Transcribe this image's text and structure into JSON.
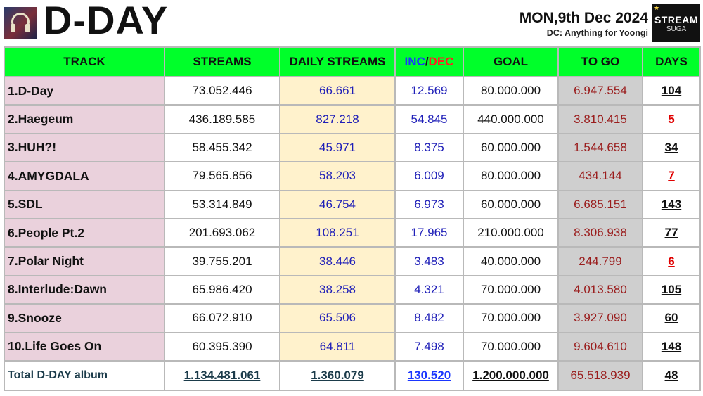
{
  "header": {
    "title": "D-DAY",
    "date": "MON,9th Dec 2024",
    "caption": "DC: Anything for Yoongi",
    "logo_line1": "STREAM",
    "logo_line2": "SUGA"
  },
  "table": {
    "columns": {
      "track": "TRACK",
      "streams": "STREAMS",
      "daily": "DAILY STREAMS",
      "inc": "INC",
      "slash": "/",
      "dec": "DEC",
      "goal": "GOAL",
      "togo": "TO GO",
      "days": "DAYS"
    },
    "rows": [
      {
        "track": "1.D-Day",
        "streams": "73.052.446",
        "daily": "66.661",
        "inc": "12.569",
        "goal": "80.000.000",
        "togo": "6.947.554",
        "days": "104"
      },
      {
        "track": "2.Haegeum",
        "streams": "436.189.585",
        "daily": "827.218",
        "inc": "54.845",
        "goal": "440.000.000",
        "togo": "3.810.415",
        "days": "5"
      },
      {
        "track": "3.HUH?!",
        "streams": "58.455.342",
        "daily": "45.971",
        "inc": "8.375",
        "goal": "60.000.000",
        "togo": "1.544.658",
        "days": "34"
      },
      {
        "track": "4.AMYGDALA",
        "streams": "79.565.856",
        "daily": "58.203",
        "inc": "6.009",
        "goal": "80.000.000",
        "togo": "434.144",
        "days": "7"
      },
      {
        "track": "5.SDL",
        "streams": "53.314.849",
        "daily": "46.754",
        "inc": "6.973",
        "goal": "60.000.000",
        "togo": "6.685.151",
        "days": "143"
      },
      {
        "track": "6.People Pt.2",
        "streams": "201.693.062",
        "daily": "108.251",
        "inc": "17.965",
        "goal": "210.000.000",
        "togo": "8.306.938",
        "days": "77"
      },
      {
        "track": "7.Polar Night",
        "streams": "39.755.201",
        "daily": "38.446",
        "inc": "3.483",
        "goal": "40.000.000",
        "togo": "244.799",
        "days": "6"
      },
      {
        "track": "8.Interlude:Dawn",
        "streams": "65.986.420",
        "daily": "38.258",
        "inc": "4.321",
        "goal": "70.000.000",
        "togo": "4.013.580",
        "days": "105"
      },
      {
        "track": "9.Snooze",
        "streams": "66.072.910",
        "daily": "65.506",
        "inc": "8.482",
        "goal": "70.000.000",
        "togo": "3.927.090",
        "days": "60"
      },
      {
        "track": "10.Life Goes On",
        "streams": "60.395.390",
        "daily": "64.811",
        "inc": "7.498",
        "goal": "70.000.000",
        "togo": "9.604.610",
        "days": "148"
      }
    ],
    "total": {
      "label": "Total D-DAY album",
      "streams": "1.134.481.061",
      "daily": "1.360.079",
      "inc": "130.520",
      "goal": "1.200.000.000",
      "togo": "65.518.939",
      "days": "48"
    }
  },
  "colors": {
    "header_green": "#00ff2a",
    "track_pink": "#ead1dc",
    "daily_cream": "#fff2cc",
    "togo_gray": "#cfcfcf",
    "alert_red": "#e00000",
    "number_blue": "#1f1fb8"
  }
}
